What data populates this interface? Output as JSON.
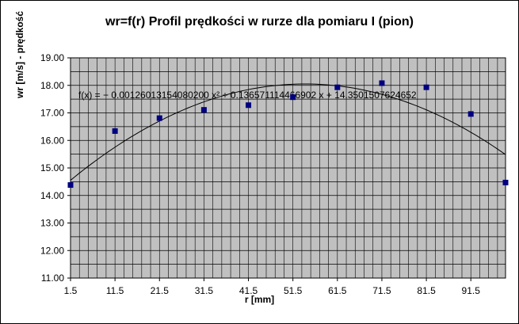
{
  "chart_data": {
    "type": "scatter",
    "title": "wr=f(r) Profil prędkości w rurze dla pomiaru I (pion)",
    "xlabel": "r [mm]",
    "ylabel": "wr [m/s] - prędkość",
    "x_ticks": [
      "1.5",
      "11.5",
      "21.5",
      "31.5",
      "41.5",
      "51.5",
      "61.5",
      "71.5",
      "81.5",
      "91.5"
    ],
    "y_ticks": [
      "11.00",
      "12.00",
      "13.00",
      "14.00",
      "15.00",
      "16.00",
      "17.00",
      "18.00",
      "19.00"
    ],
    "xlim": [
      1.5,
      99.3
    ],
    "ylim": [
      11,
      19
    ],
    "grid": true,
    "plot_background": "#c0c0c0",
    "marker_color": "#000080",
    "trendline_color": "#000000",
    "series": [
      {
        "points": [
          {
            "x": 1.5,
            "y": 14.38
          },
          {
            "x": 11.5,
            "y": 16.34
          },
          {
            "x": 21.5,
            "y": 16.81
          },
          {
            "x": 31.5,
            "y": 17.11
          },
          {
            "x": 41.5,
            "y": 17.28
          },
          {
            "x": 51.5,
            "y": 17.57
          },
          {
            "x": 61.5,
            "y": 17.93
          },
          {
            "x": 71.5,
            "y": 18.08
          },
          {
            "x": 81.5,
            "y": 17.93
          },
          {
            "x": 91.5,
            "y": 16.96
          },
          {
            "x": 99.3,
            "y": 14.47
          }
        ]
      }
    ],
    "trendline": {
      "type": "polynomial",
      "coefficients": {
        "a2": -0.001260131540802,
        "a1": 0.136571114466902,
        "a0": 14.3501507624652
      },
      "equation": "f(x) = − 0.00126013154080200 x² + 0.136571114466902 x + 14.3501507624652"
    }
  }
}
